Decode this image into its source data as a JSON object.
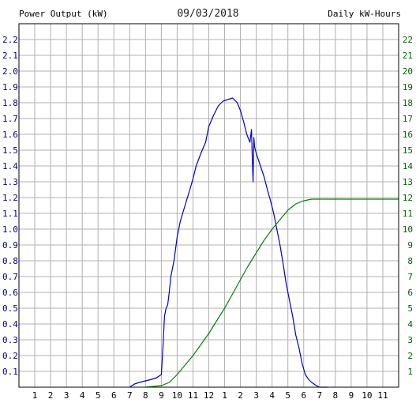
{
  "chart_data": {
    "type": "line",
    "title": "09/03/2018",
    "ylabel_left": "Power Output (kW)",
    "ylabel_right": "Daily kW-Hours",
    "x_ticks": [
      "1",
      "2",
      "3",
      "4",
      "5",
      "6",
      "7",
      "8",
      "9",
      "10",
      "11",
      "12",
      "1",
      "2",
      "3",
      "4",
      "5",
      "6",
      "7",
      "8",
      "9",
      "10",
      "11"
    ],
    "xlim": [
      0,
      24
    ],
    "ylim_left": [
      0,
      2.3
    ],
    "ylim_right": [
      0,
      23
    ],
    "y_ticks_left": [
      "0.1",
      "0.2",
      "0.3",
      "0.4",
      "0.5",
      "0.6",
      "0.7",
      "0.8",
      "0.9",
      "1.0",
      "1.1",
      "1.2",
      "1.3",
      "1.4",
      "1.5",
      "1.6",
      "1.7",
      "1.8",
      "1.9",
      "2.0",
      "2.1",
      "2.2"
    ],
    "y_ticks_right": [
      "1",
      "2",
      "3",
      "4",
      "5",
      "6",
      "7",
      "8",
      "9",
      "10",
      "11",
      "12",
      "13",
      "14",
      "15",
      "16",
      "17",
      "18",
      "19",
      "20",
      "21",
      "22"
    ],
    "grid": true,
    "colors": {
      "power": "#0000cc",
      "energy": "#008000",
      "left_axis": "#000080",
      "right_axis": "#006400",
      "grid": "#b0b0b0"
    },
    "series": [
      {
        "axis": "left",
        "color": "#0000cc",
        "points": [
          [
            7.0,
            0.0
          ],
          [
            7.3,
            0.02
          ],
          [
            7.6,
            0.03
          ],
          [
            8.0,
            0.04
          ],
          [
            8.4,
            0.05
          ],
          [
            8.7,
            0.06
          ],
          [
            9.0,
            0.08
          ],
          [
            9.1,
            0.25
          ],
          [
            9.2,
            0.45
          ],
          [
            9.3,
            0.5
          ],
          [
            9.4,
            0.52
          ],
          [
            9.5,
            0.6
          ],
          [
            9.6,
            0.7
          ],
          [
            9.8,
            0.8
          ],
          [
            10.0,
            0.95
          ],
          [
            10.2,
            1.05
          ],
          [
            10.5,
            1.15
          ],
          [
            10.8,
            1.25
          ],
          [
            11.0,
            1.32
          ],
          [
            11.2,
            1.4
          ],
          [
            11.5,
            1.48
          ],
          [
            11.8,
            1.55
          ],
          [
            12.0,
            1.65
          ],
          [
            12.3,
            1.72
          ],
          [
            12.6,
            1.78
          ],
          [
            12.9,
            1.81
          ],
          [
            13.2,
            1.82
          ],
          [
            13.5,
            1.83
          ],
          [
            13.8,
            1.8
          ],
          [
            14.0,
            1.75
          ],
          [
            14.2,
            1.68
          ],
          [
            14.4,
            1.6
          ],
          [
            14.6,
            1.55
          ],
          [
            14.7,
            1.63
          ],
          [
            14.75,
            1.45
          ],
          [
            14.8,
            1.3
          ],
          [
            14.85,
            1.58
          ],
          [
            14.9,
            1.52
          ],
          [
            15.0,
            1.48
          ],
          [
            15.2,
            1.42
          ],
          [
            15.5,
            1.33
          ],
          [
            15.7,
            1.25
          ],
          [
            15.9,
            1.18
          ],
          [
            16.1,
            1.1
          ],
          [
            16.3,
            1.0
          ],
          [
            16.5,
            0.9
          ],
          [
            16.7,
            0.78
          ],
          [
            16.9,
            0.65
          ],
          [
            17.1,
            0.55
          ],
          [
            17.3,
            0.45
          ],
          [
            17.5,
            0.33
          ],
          [
            17.7,
            0.25
          ],
          [
            17.9,
            0.15
          ],
          [
            18.1,
            0.08
          ],
          [
            18.3,
            0.05
          ],
          [
            18.5,
            0.03
          ],
          [
            18.8,
            0.01
          ],
          [
            19.0,
            0.0
          ],
          [
            19.5,
            0.0
          ]
        ]
      },
      {
        "axis": "right",
        "color": "#008000",
        "points": [
          [
            8.0,
            0.0
          ],
          [
            9.0,
            0.1
          ],
          [
            9.5,
            0.3
          ],
          [
            10.0,
            0.8
          ],
          [
            10.5,
            1.4
          ],
          [
            11.0,
            2.0
          ],
          [
            11.5,
            2.7
          ],
          [
            12.0,
            3.4
          ],
          [
            12.5,
            4.2
          ],
          [
            13.0,
            5.0
          ],
          [
            13.5,
            5.9
          ],
          [
            14.0,
            6.8
          ],
          [
            14.5,
            7.7
          ],
          [
            15.0,
            8.5
          ],
          [
            15.5,
            9.3
          ],
          [
            16.0,
            10.0
          ],
          [
            16.5,
            10.6
          ],
          [
            17.0,
            11.2
          ],
          [
            17.5,
            11.6
          ],
          [
            18.0,
            11.8
          ],
          [
            18.5,
            11.9
          ],
          [
            19.0,
            11.9
          ],
          [
            24.0,
            11.9
          ]
        ]
      }
    ]
  }
}
